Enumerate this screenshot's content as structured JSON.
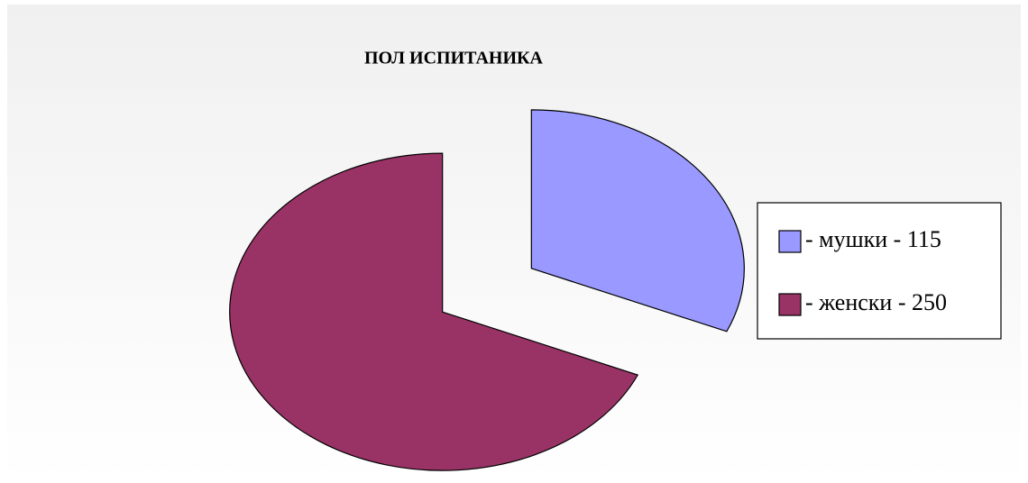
{
  "chart_data": {
    "type": "pie",
    "title": "ПОЛ ИСПИТАНИКА",
    "categories": [
      "- мушки - 115",
      "- женски - 250"
    ],
    "values": [
      115,
      250
    ],
    "colors": [
      "#9999ff",
      "#993366"
    ],
    "legend": "right"
  }
}
